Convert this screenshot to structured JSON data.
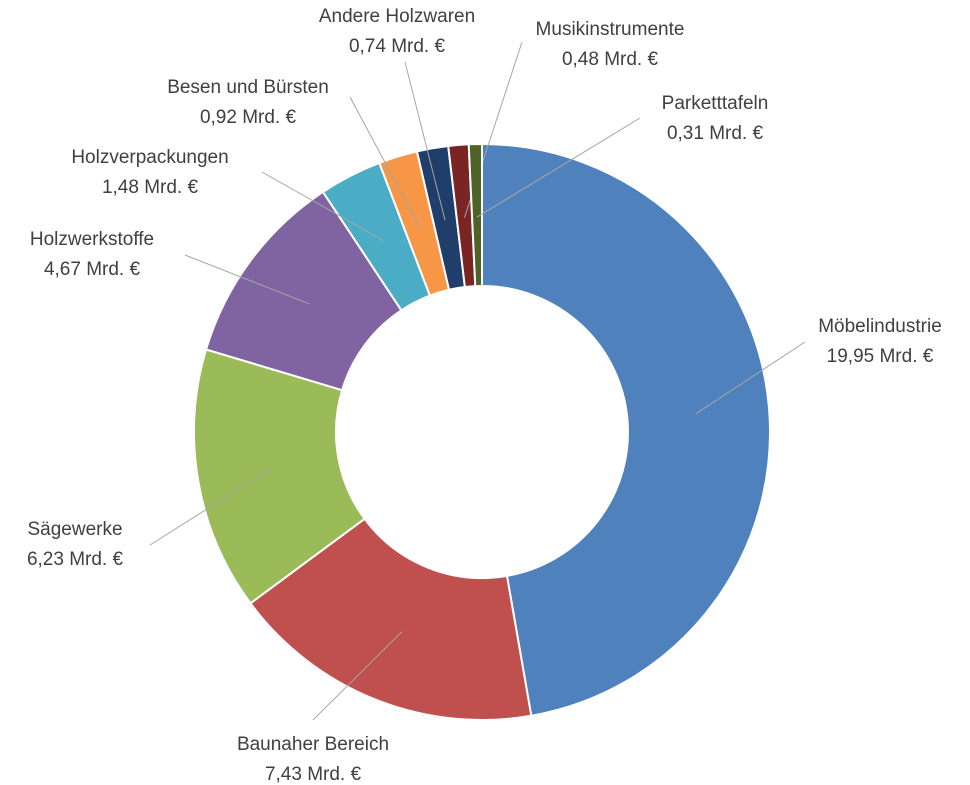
{
  "chart_data": {
    "type": "donut",
    "categories": [
      "Möbelindustrie",
      "Baunaher Bereich",
      "Sägewerke",
      "Holzwerkstoffe",
      "Holzverpackungen",
      "Besen und Bürsten",
      "Andere Holzwaren",
      "Musikinstrumente",
      "Parketttafeln"
    ],
    "values": [
      19.95,
      7.43,
      6.23,
      4.67,
      1.48,
      0.92,
      0.74,
      0.48,
      0.31
    ],
    "value_labels": [
      "19,95 Mrd. €",
      "7,43 Mrd. €",
      "6,23 Mrd. €",
      "4,67 Mrd. €",
      "1,48 Mrd. €",
      "0,92 Mrd. €",
      "0,74 Mrd. €",
      "0,48 Mrd. €",
      "0,31 Mrd. €"
    ],
    "colors": [
      "#4f81bd",
      "#c0504d",
      "#9bbb59",
      "#8064a2",
      "#4bacc6",
      "#f79646",
      "#1f3f6a",
      "#7a2424",
      "#4f6228"
    ]
  }
}
